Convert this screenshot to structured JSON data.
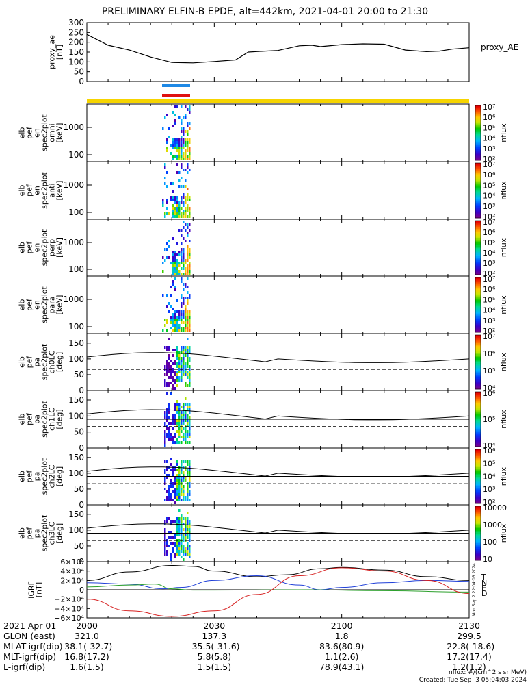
{
  "title": "PRELIMINARY ELFIN-B EPDE, alt=442km, 2021-04-01 20:00 to 21:30",
  "colors": {
    "ae_line": "#000000",
    "ram_bar_top": "#1e88e5",
    "ram_bar_bottom": "#e01010",
    "orbit_bar": "#f6d400",
    "igrf_total": "#000000",
    "igrf_N": "#1f3fd8",
    "igrf_E": "#2ca02c",
    "igrf_D": "#d62020"
  },
  "chart_data": [
    {
      "type": "line",
      "ylabel_lines": [
        "proxy_ae",
        "[nT]"
      ],
      "series_label": "proxy_AE",
      "ylim": [
        0,
        300
      ],
      "yticks": [
        "0",
        "50",
        "100",
        "150",
        "200",
        "250",
        "300"
      ],
      "x_minutes": [
        0,
        5,
        10,
        15,
        20,
        25,
        30,
        35,
        38,
        42,
        45,
        50,
        53,
        55,
        60,
        65,
        70,
        75,
        80,
        83,
        86,
        90
      ],
      "values": [
        240,
        185,
        160,
        125,
        97,
        95,
        102,
        110,
        150,
        155,
        158,
        182,
        185,
        178,
        188,
        192,
        190,
        160,
        152,
        155,
        165,
        172
      ]
    },
    {
      "type": "heatmap",
      "ylabel_lines": [
        "elb",
        "pef",
        "en",
        "spec2plot",
        "omni",
        "[keV]"
      ],
      "yticks": [
        "100",
        "1000"
      ],
      "colorbar_label": "nflux",
      "colorbar_ticks": [
        "10²",
        "10³",
        "10⁴",
        "10⁵",
        "10⁶",
        "10⁷"
      ]
    },
    {
      "type": "heatmap",
      "ylabel_lines": [
        "elb",
        "pef",
        "en",
        "spec2plot",
        "anti",
        "[keV]"
      ],
      "yticks": [
        "100",
        "1000"
      ],
      "colorbar_label": "nflux",
      "colorbar_ticks": [
        "10²",
        "10³",
        "10⁴",
        "10⁵",
        "10⁶",
        "10⁷"
      ]
    },
    {
      "type": "heatmap",
      "ylabel_lines": [
        "elb",
        "pef",
        "en",
        "spec2plot",
        "perp",
        "[keV]"
      ],
      "yticks": [
        "100",
        "1000"
      ],
      "colorbar_label": "nflux",
      "colorbar_ticks": [
        "10²",
        "10³",
        "10⁴",
        "10⁵",
        "10⁶",
        "10⁷"
      ]
    },
    {
      "type": "heatmap",
      "ylabel_lines": [
        "elb",
        "pef",
        "en",
        "spec2plot",
        "para",
        "[keV]"
      ],
      "yticks": [
        "100",
        "1000"
      ],
      "colorbar_label": "nflux",
      "colorbar_ticks": [
        "10²",
        "10³",
        "10⁴",
        "10⁵",
        "10⁶",
        "10⁷"
      ]
    },
    {
      "type": "heatmap",
      "ylabel_lines": [
        "elb",
        "pef",
        "pa",
        "spec2plot",
        "ch0LC",
        "[deg]"
      ],
      "yticks": [
        "0",
        "50",
        "100",
        "150"
      ],
      "ylim": [
        0,
        180
      ],
      "colorbar_label": "nflux",
      "colorbar_ticks": [
        "10⁴",
        "10⁵",
        "10⁶",
        "10⁷"
      ]
    },
    {
      "type": "heatmap",
      "ylabel_lines": [
        "elb",
        "pef",
        "pa",
        "spec2plot",
        "ch1LC",
        "[deg]"
      ],
      "yticks": [
        "0",
        "50",
        "100",
        "150"
      ],
      "ylim": [
        0,
        180
      ],
      "colorbar_label": "nflux",
      "colorbar_ticks": [
        "10⁴",
        "10⁵",
        "10⁶"
      ]
    },
    {
      "type": "heatmap",
      "ylabel_lines": [
        "elb",
        "pef",
        "pa",
        "spec2plot",
        "ch2LC",
        "[deg]"
      ],
      "yticks": [
        "0",
        "50",
        "100",
        "150"
      ],
      "ylim": [
        0,
        180
      ],
      "colorbar_label": "nflux",
      "colorbar_ticks": [
        "10²",
        "10³",
        "10⁴",
        "10⁵",
        "10⁶"
      ]
    },
    {
      "type": "heatmap",
      "ylabel_lines": [
        "elb",
        "pef",
        "pa",
        "spec2plot",
        "ch3LC",
        "[deg]"
      ],
      "yticks": [
        "0",
        "50",
        "100",
        "150"
      ],
      "ylim": [
        0,
        180
      ],
      "colorbar_label": "nflux",
      "colorbar_ticks": [
        "10",
        "100",
        "1000",
        "10000"
      ]
    },
    {
      "type": "line",
      "ylabel_lines": [
        "IGRF",
        "[nT]"
      ],
      "ylim": [
        -60000,
        60000
      ],
      "yticks": [
        "6×10⁴",
        "4×10⁴",
        "2×10⁴",
        "0",
        "−2×10⁴",
        "−4×10⁴",
        "−6×10⁴"
      ],
      "side_text": "Mon Sep  2 22:04:03 2024",
      "series": [
        {
          "name": "T",
          "x_minutes": [
            0,
            10,
            20,
            25,
            30,
            40,
            47,
            55,
            60,
            70,
            80,
            90
          ],
          "values": [
            20000,
            38000,
            52000,
            50000,
            40000,
            28000,
            32000,
            45000,
            48000,
            42000,
            28000,
            20000
          ]
        },
        {
          "name": "N",
          "x_minutes": [
            0,
            10,
            18,
            22,
            30,
            40,
            50,
            55,
            60,
            70,
            80,
            90
          ],
          "values": [
            15000,
            12000,
            2000,
            5000,
            20000,
            30000,
            10000,
            0,
            5000,
            15000,
            20000,
            18000
          ]
        },
        {
          "name": "E",
          "x_minutes": [
            0,
            10,
            16,
            20,
            25,
            30,
            50,
            70,
            90
          ],
          "values": [
            6000,
            10000,
            12000,
            2000,
            -1000,
            -1000,
            0,
            -2000,
            -5000
          ]
        },
        {
          "name": "D",
          "x_minutes": [
            0,
            10,
            20,
            30,
            40,
            50,
            60,
            70,
            80,
            90
          ],
          "values": [
            -20000,
            -45000,
            -57000,
            -45000,
            -10000,
            30000,
            47000,
            40000,
            20000,
            -8000
          ]
        }
      ]
    }
  ],
  "xaxis": {
    "ticks": [
      "2000",
      "2030",
      "2100",
      "2130"
    ],
    "date_label": "2021 Apr 01",
    "rows": [
      {
        "label": "GLON (east)",
        "values": [
          "321.0",
          "137.3",
          "1.8",
          "299.5"
        ]
      },
      {
        "label": "MLAT-igrf(dip)",
        "values": [
          "-38.1(-32.7)",
          "-35.5(-31.6)",
          "83.6(80.9)",
          "-22.8(-18.6)"
        ]
      },
      {
        "label": "MLT-igrf(dip)",
        "values": [
          "16.8(17.2)",
          "5.8(5.8)",
          "1.1(2.6)",
          "17.2(17.4)"
        ]
      },
      {
        "label": "L-igrf(dip)",
        "values": [
          "1.6(1.5)",
          "1.5(1.5)",
          "78.9(43.1)",
          "1.2(1.2)"
        ]
      }
    ]
  },
  "credit": {
    "units": "nflux: #/(cm^2 s sr MeV)",
    "created": "Created: Tue Sep  3 05:04:03 2024"
  }
}
